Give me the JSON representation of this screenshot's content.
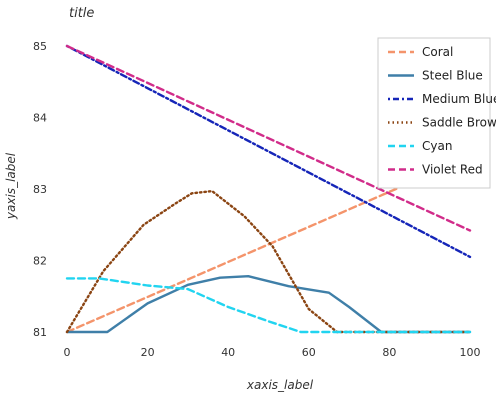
{
  "chart_data": {
    "type": "line",
    "title": "title",
    "xlabel": "xaxis_label",
    "ylabel": "yaxis_label",
    "xlim": [
      0,
      100
    ],
    "ylim": [
      81,
      85
    ],
    "xticks": [
      "0",
      "20",
      "40",
      "60",
      "80",
      "100"
    ],
    "yticks": [
      "81",
      "82",
      "83",
      "84",
      "85"
    ],
    "grid": false,
    "legend_position": "right",
    "series": [
      {
        "name": "Coral",
        "color": "#f4946b",
        "dash": "dashed",
        "x": [
          0,
          100
        ],
        "y": [
          81.0,
          83.45
        ]
      },
      {
        "name": "Steel Blue",
        "color": "#3f7fa8",
        "dash": "solid",
        "x": [
          0,
          10,
          20,
          30,
          38,
          45,
          55,
          65,
          70,
          78,
          90,
          100
        ],
        "y": [
          81.0,
          81.0,
          81.4,
          81.66,
          81.76,
          81.78,
          81.64,
          81.55,
          81.35,
          81.0,
          81.0,
          81.0
        ]
      },
      {
        "name": "Medium Blue",
        "color": "#1525b8",
        "dash": "dotdash",
        "x": [
          0,
          100
        ],
        "y": [
          85.0,
          82.05
        ]
      },
      {
        "name": "Saddle Brown",
        "color": "#8b4513",
        "dash": "dotted",
        "x": [
          0,
          9,
          19,
          27,
          31,
          36,
          44,
          51,
          60,
          67,
          80,
          100
        ],
        "y": [
          81.0,
          81.85,
          82.5,
          82.8,
          82.94,
          82.97,
          82.62,
          82.2,
          81.32,
          81.0,
          81.0,
          81.0
        ]
      },
      {
        "name": "Cyan",
        "color": "#21d4f0",
        "dash": "dashed",
        "x": [
          0,
          8,
          20,
          30,
          40,
          50,
          58,
          70,
          100
        ],
        "y": [
          81.75,
          81.75,
          81.65,
          81.6,
          81.35,
          81.15,
          81.0,
          81.0,
          81.0
        ]
      },
      {
        "name": "Violet Red",
        "color": "#d12c8a",
        "dash": "dashed",
        "x": [
          0,
          100
        ],
        "y": [
          85.0,
          82.42
        ]
      }
    ]
  }
}
